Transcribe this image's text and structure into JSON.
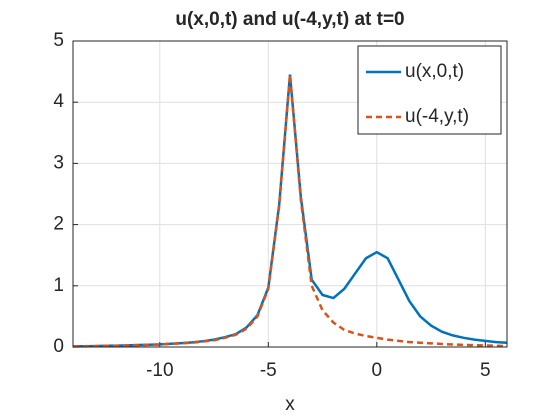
{
  "chart_data": {
    "type": "line",
    "title": "u(x,0,t) and u(-4,y,t) at t=0",
    "xlabel": "x",
    "x": [
      -14,
      -13.5,
      -13,
      -12.5,
      -12,
      -11.5,
      -11,
      -10.5,
      -10,
      -9.5,
      -9,
      -8.5,
      -8,
      -7.5,
      -7,
      -6.5,
      -6,
      -5.5,
      -5,
      -4.5,
      -4,
      -3.5,
      -3,
      -2.5,
      -2,
      -1.5,
      -1,
      -0.5,
      0,
      0.5,
      1,
      1.5,
      2,
      2.5,
      3,
      3.5,
      4,
      4.5,
      5,
      5.5,
      6
    ],
    "series": [
      {
        "name": "u(x,0,t)",
        "color": "#0072BD",
        "dash": false,
        "values": [
          0.01,
          0.012,
          0.015,
          0.02,
          0.022,
          0.027,
          0.032,
          0.037,
          0.043,
          0.053,
          0.064,
          0.075,
          0.095,
          0.12,
          0.16,
          0.21,
          0.32,
          0.52,
          0.97,
          2.32,
          4.45,
          2.45,
          1.1,
          0.85,
          0.8,
          0.95,
          1.2,
          1.45,
          1.55,
          1.45,
          1.1,
          0.75,
          0.5,
          0.35,
          0.25,
          0.19,
          0.15,
          0.12,
          0.1,
          0.08,
          0.07
        ]
      },
      {
        "name": "u(-4,y,t)",
        "color": "#D95319",
        "dash": true,
        "values": [
          0.01,
          0.01,
          0.015,
          0.02,
          0.02,
          0.025,
          0.03,
          0.035,
          0.04,
          0.05,
          0.06,
          0.07,
          0.09,
          0.11,
          0.15,
          0.2,
          0.3,
          0.5,
          0.95,
          2.3,
          4.45,
          2.4,
          1.0,
          0.6,
          0.4,
          0.28,
          0.22,
          0.18,
          0.15,
          0.12,
          0.1,
          0.08,
          0.07,
          0.06,
          0.05,
          0.04,
          0.035,
          0.03,
          0.025,
          0.02,
          0.015
        ]
      }
    ],
    "xlim": [
      -14,
      6
    ],
    "xticks": [
      -10,
      -5,
      0,
      5
    ],
    "ylim": [
      0,
      5
    ],
    "yticks": [
      0,
      1,
      2,
      3,
      4,
      5
    ],
    "grid": true,
    "legend": "top-right"
  }
}
